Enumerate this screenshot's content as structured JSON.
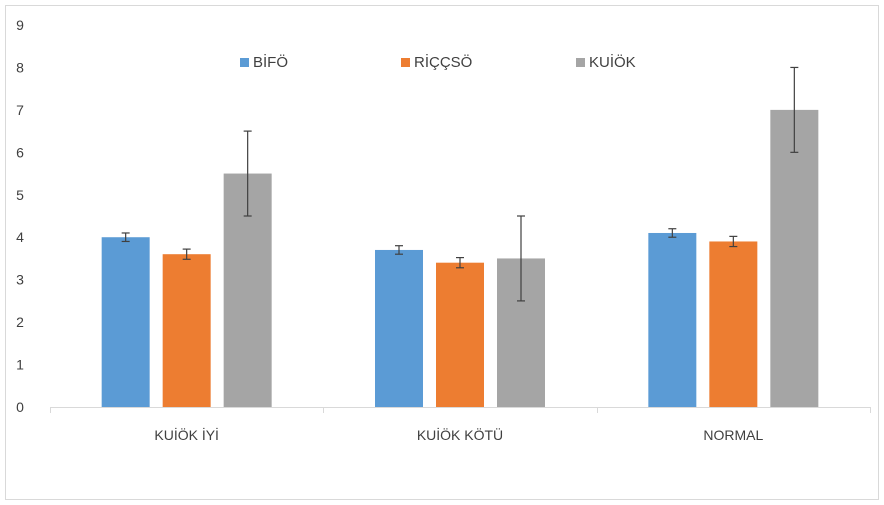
{
  "chart_data": {
    "type": "bar",
    "title": "",
    "xlabel": "",
    "ylabel": "",
    "categories": [
      "KUİÖK İYİ",
      "KUİÖK KÖTÜ",
      "NORMAL"
    ],
    "ylim": [
      0,
      9
    ],
    "yticks": [
      0,
      1,
      2,
      3,
      4,
      5,
      6,
      7,
      8,
      9
    ],
    "grid": false,
    "legend_position": "top-center",
    "series": [
      {
        "name": "BİFÖ",
        "color": "#5b9bd5",
        "values": [
          4.0,
          3.7,
          4.1
        ],
        "error": [
          0.1,
          0.1,
          0.1
        ]
      },
      {
        "name": "RİÇÇSÖ",
        "color": "#ed7d31",
        "values": [
          3.6,
          3.4,
          3.9
        ],
        "error": [
          0.12,
          0.12,
          0.12
        ]
      },
      {
        "name": "KUİÖK",
        "color": "#a5a5a5",
        "values": [
          5.5,
          3.5,
          7.0
        ],
        "error": [
          1.0,
          1.0,
          1.0
        ]
      }
    ]
  }
}
